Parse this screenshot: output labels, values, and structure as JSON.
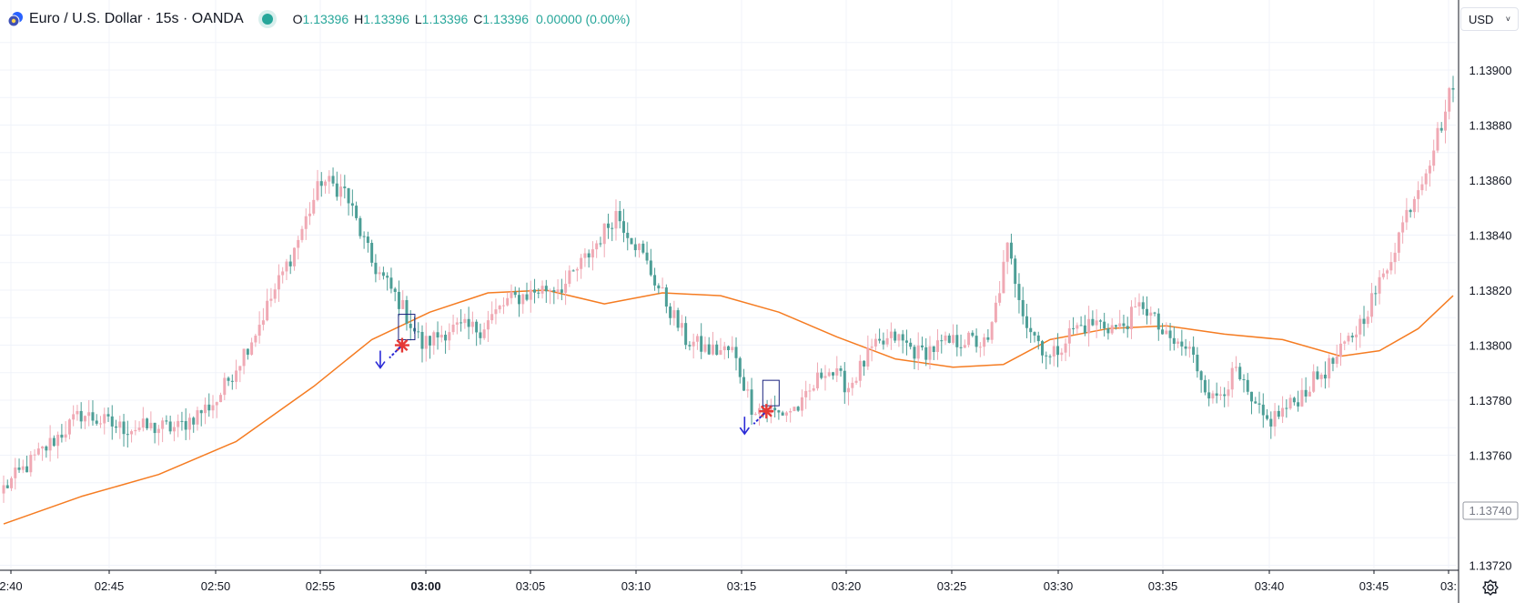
{
  "header": {
    "symbol_title": "Euro / U.S. Dollar · 15s · OANDA",
    "ohlc": {
      "open_label": "O",
      "open": "1.13396",
      "high_label": "H",
      "high": "1.13396",
      "low_label": "L",
      "low": "1.13396",
      "close_label": "C",
      "close": "1.13396"
    },
    "change": "0.00000 (0.00%)",
    "status_color": "#26a69a"
  },
  "currency": {
    "label": "USD",
    "icon": "chevron-down-icon"
  },
  "settings": {
    "icon": "gear-icon"
  },
  "colors": {
    "up": "#f0a9b4",
    "down": "#4c9e96",
    "ma": "#f57c22",
    "grid": "#f0f3fa",
    "axis_line": "#131722"
  },
  "chart_data": {
    "type": "candlestick",
    "x_tick_labels": [
      "2:40",
      "02:45",
      "02:50",
      "02:55",
      "03:00",
      "03:05",
      "03:10",
      "03:15",
      "03:20",
      "03:25",
      "03:30",
      "03:35",
      "03:40",
      "03:45",
      "03:"
    ],
    "y_tick_labels": [
      "1.13900",
      "1.13880",
      "1.13860",
      "1.13840",
      "1.13820",
      "1.13800",
      "1.13780",
      "1.13760",
      "1.13720"
    ],
    "price_label": "1.13740",
    "ylim": [
      1.1372,
      1.1393
    ],
    "key_points": [
      {
        "x": 0,
        "y": 1.13748
      },
      {
        "x": 20,
        "y": 1.13775
      },
      {
        "x": 30,
        "y": 1.1377
      },
      {
        "x": 45,
        "y": 1.1377
      },
      {
        "x": 55,
        "y": 1.1378
      },
      {
        "x": 65,
        "y": 1.13805
      },
      {
        "x": 75,
        "y": 1.13835
      },
      {
        "x": 82,
        "y": 1.1386
      },
      {
        "x": 88,
        "y": 1.13856
      },
      {
        "x": 95,
        "y": 1.1383
      },
      {
        "x": 102,
        "y": 1.13816
      },
      {
        "x": 108,
        "y": 1.138
      },
      {
        "x": 115,
        "y": 1.13806
      },
      {
        "x": 123,
        "y": 1.13806
      },
      {
        "x": 130,
        "y": 1.13816
      },
      {
        "x": 138,
        "y": 1.1382
      },
      {
        "x": 145,
        "y": 1.13822
      },
      {
        "x": 152,
        "y": 1.13835
      },
      {
        "x": 158,
        "y": 1.13848
      },
      {
        "x": 164,
        "y": 1.13835
      },
      {
        "x": 170,
        "y": 1.13818
      },
      {
        "x": 176,
        "y": 1.13802
      },
      {
        "x": 182,
        "y": 1.13798
      },
      {
        "x": 188,
        "y": 1.13798
      },
      {
        "x": 193,
        "y": 1.13778
      },
      {
        "x": 200,
        "y": 1.13775
      },
      {
        "x": 206,
        "y": 1.13778
      },
      {
        "x": 212,
        "y": 1.13792
      },
      {
        "x": 218,
        "y": 1.13785
      },
      {
        "x": 224,
        "y": 1.13798
      },
      {
        "x": 230,
        "y": 1.13803
      },
      {
        "x": 236,
        "y": 1.13797
      },
      {
        "x": 242,
        "y": 1.138
      },
      {
        "x": 248,
        "y": 1.13802
      },
      {
        "x": 254,
        "y": 1.138
      },
      {
        "x": 259,
        "y": 1.13835
      },
      {
        "x": 264,
        "y": 1.13808
      },
      {
        "x": 270,
        "y": 1.13795
      },
      {
        "x": 276,
        "y": 1.13806
      },
      {
        "x": 282,
        "y": 1.13808
      },
      {
        "x": 288,
        "y": 1.13806
      },
      {
        "x": 294,
        "y": 1.13815
      },
      {
        "x": 300,
        "y": 1.13802
      },
      {
        "x": 306,
        "y": 1.13798
      },
      {
        "x": 312,
        "y": 1.1378
      },
      {
        "x": 318,
        "y": 1.1379
      },
      {
        "x": 322,
        "y": 1.13778
      },
      {
        "x": 326,
        "y": 1.13772
      },
      {
        "x": 332,
        "y": 1.13778
      },
      {
        "x": 338,
        "y": 1.13787
      },
      {
        "x": 344,
        "y": 1.13795
      },
      {
        "x": 350,
        "y": 1.13808
      },
      {
        "x": 356,
        "y": 1.13825
      },
      {
        "x": 362,
        "y": 1.13848
      },
      {
        "x": 368,
        "y": 1.13868
      },
      {
        "x": 372,
        "y": 1.13885
      },
      {
        "x": 374,
        "y": 1.13896
      }
    ],
    "ma_points": [
      {
        "x": 0,
        "y": 1.13735
      },
      {
        "x": 20,
        "y": 1.13745
      },
      {
        "x": 40,
        "y": 1.13753
      },
      {
        "x": 60,
        "y": 1.13765
      },
      {
        "x": 80,
        "y": 1.13785
      },
      {
        "x": 95,
        "y": 1.13802
      },
      {
        "x": 110,
        "y": 1.13812
      },
      {
        "x": 125,
        "y": 1.13819
      },
      {
        "x": 140,
        "y": 1.1382
      },
      {
        "x": 155,
        "y": 1.13815
      },
      {
        "x": 170,
        "y": 1.13819
      },
      {
        "x": 185,
        "y": 1.13818
      },
      {
        "x": 200,
        "y": 1.13812
      },
      {
        "x": 215,
        "y": 1.13803
      },
      {
        "x": 230,
        "y": 1.13795
      },
      {
        "x": 245,
        "y": 1.13792
      },
      {
        "x": 258,
        "y": 1.13793
      },
      {
        "x": 270,
        "y": 1.13802
      },
      {
        "x": 285,
        "y": 1.13806
      },
      {
        "x": 300,
        "y": 1.13807
      },
      {
        "x": 315,
        "y": 1.13804
      },
      {
        "x": 330,
        "y": 1.13802
      },
      {
        "x": 345,
        "y": 1.13796
      },
      {
        "x": 355,
        "y": 1.13798
      },
      {
        "x": 365,
        "y": 1.13806
      },
      {
        "x": 374,
        "y": 1.13818
      }
    ],
    "signal_markers": [
      {
        "x": 100,
        "y": 1.13798
      },
      {
        "x": 194,
        "y": 1.13774
      }
    ]
  }
}
